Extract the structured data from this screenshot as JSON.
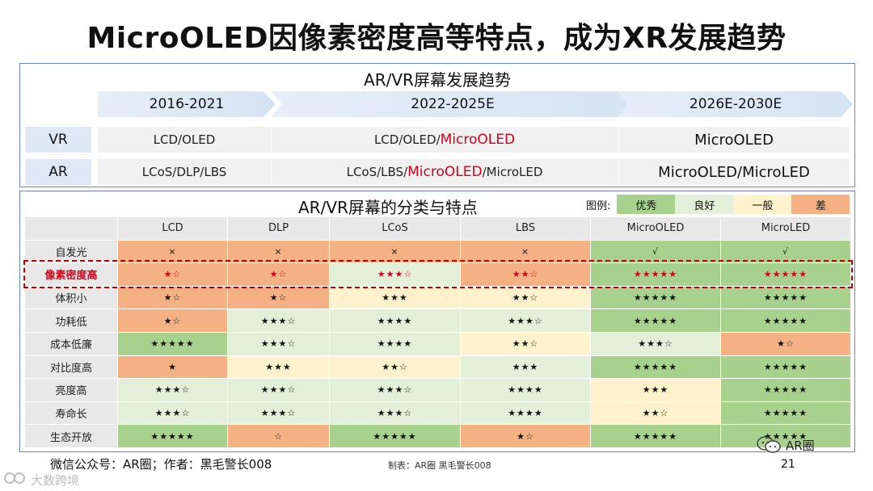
{
  "title": "MicroOLED因像素密度高等特点，成为XR发展趋势",
  "top_panel": {
    "title": "AR/VR屏幕发展趋势",
    "periods": [
      "2016-2021",
      "2022-2025E",
      "2026E-2030E"
    ],
    "rows": [
      {
        "label": "VR",
        "p1": "LCD/OLED",
        "p2_prefix": "LCD/OLED/",
        "p2_highlight": "MicroOLED",
        "p2_suffix": "",
        "p3": "MicroOLED"
      },
      {
        "label": "AR",
        "p1": "LCoS/DLP/LBS",
        "p2_prefix": "LCoS/LBS/",
        "p2_highlight": "MicroOLED",
        "p2_suffix": "/MicroLED",
        "p3": "MicroOLED/MicroLED"
      }
    ]
  },
  "bottom_panel": {
    "title": "AR/VR屏幕的分类与特点",
    "legend": {
      "label": "图例:",
      "items": [
        {
          "name": "优秀",
          "color": "#a9d18e"
        },
        {
          "name": "良好",
          "color": "#e2efd9"
        },
        {
          "name": "一般",
          "color": "#fff2cc"
        },
        {
          "name": "差",
          "color": "#f4b183"
        }
      ]
    },
    "columns": [
      "LCD",
      "DLP",
      "LCoS",
      "LBS",
      "MicroOLED",
      "MicroLED"
    ],
    "rows": [
      {
        "label": "自发光",
        "cells": [
          [
            "×",
            "bad"
          ],
          [
            "×",
            "bad"
          ],
          [
            "×",
            "bad"
          ],
          [
            "×",
            "bad"
          ],
          [
            "√",
            "good"
          ],
          [
            "√",
            "good"
          ]
        ]
      },
      {
        "label": "像素密度高",
        "highlight": true,
        "cells": [
          [
            "★☆",
            "bad"
          ],
          [
            "★☆",
            "bad"
          ],
          [
            "★★★☆",
            "ok"
          ],
          [
            "★★☆",
            "bad"
          ],
          [
            "★★★★★",
            "good"
          ],
          [
            "★★★★★",
            "good"
          ]
        ]
      },
      {
        "label": "体积小",
        "cells": [
          [
            "★☆",
            "bad"
          ],
          [
            "★☆",
            "bad"
          ],
          [
            "★★★",
            "avg"
          ],
          [
            "★★☆",
            "avg"
          ],
          [
            "★★★★★",
            "good"
          ],
          [
            "★★★★★",
            "good"
          ]
        ]
      },
      {
        "label": "功耗低",
        "cells": [
          [
            "★☆",
            "bad"
          ],
          [
            "★★★☆",
            "ok"
          ],
          [
            "★★★★",
            "ok"
          ],
          [
            "★★★☆",
            "ok"
          ],
          [
            "★★★★★",
            "good"
          ],
          [
            "★★★★★",
            "good"
          ]
        ]
      },
      {
        "label": "成本低廉",
        "cells": [
          [
            "★★★★★",
            "good"
          ],
          [
            "★★★☆",
            "ok"
          ],
          [
            "★★★★",
            "ok"
          ],
          [
            "★★☆",
            "avg"
          ],
          [
            "★★★☆",
            "ok"
          ],
          [
            "★☆",
            "bad"
          ]
        ]
      },
      {
        "label": "对比度高",
        "cells": [
          [
            "★",
            "bad"
          ],
          [
            "★★★",
            "avg"
          ],
          [
            "★★☆",
            "avg"
          ],
          [
            "★★★",
            "ok"
          ],
          [
            "★★★★★",
            "good"
          ],
          [
            "★★★★★",
            "good"
          ]
        ]
      },
      {
        "label": "亮度高",
        "cells": [
          [
            "★★★☆",
            "ok"
          ],
          [
            "★★★☆",
            "ok"
          ],
          [
            "★★★☆",
            "ok"
          ],
          [
            "★★★★",
            "ok"
          ],
          [
            "★★★",
            "avg"
          ],
          [
            "★★★★★",
            "good"
          ]
        ]
      },
      {
        "label": "寿命长",
        "cells": [
          [
            "★★★☆",
            "ok"
          ],
          [
            "★★★☆",
            "ok"
          ],
          [
            "★★★☆",
            "ok"
          ],
          [
            "★★★★",
            "ok"
          ],
          [
            "★★☆",
            "avg"
          ],
          [
            "★★★★★",
            "good"
          ]
        ]
      },
      {
        "label": "生态开放",
        "cells": [
          [
            "★★★★★",
            "good"
          ],
          [
            "☆",
            "bad"
          ],
          [
            "★★★★★",
            "good"
          ],
          [
            "★☆",
            "bad"
          ],
          [
            "★★★★★",
            "good"
          ],
          [
            "★★★★★",
            "good"
          ]
        ]
      }
    ]
  },
  "footer": {
    "left": "微信公众号：AR圈；作者：黑毛警长008",
    "middle": "制表：AR圈 黑毛警长008",
    "page": "21",
    "badge": "AR圈",
    "corner": "大数跨境"
  },
  "colors": {
    "accent_red": "#d0021b",
    "panel_border": "#6a86b8",
    "arrow_fill": "#dfe8f5"
  }
}
